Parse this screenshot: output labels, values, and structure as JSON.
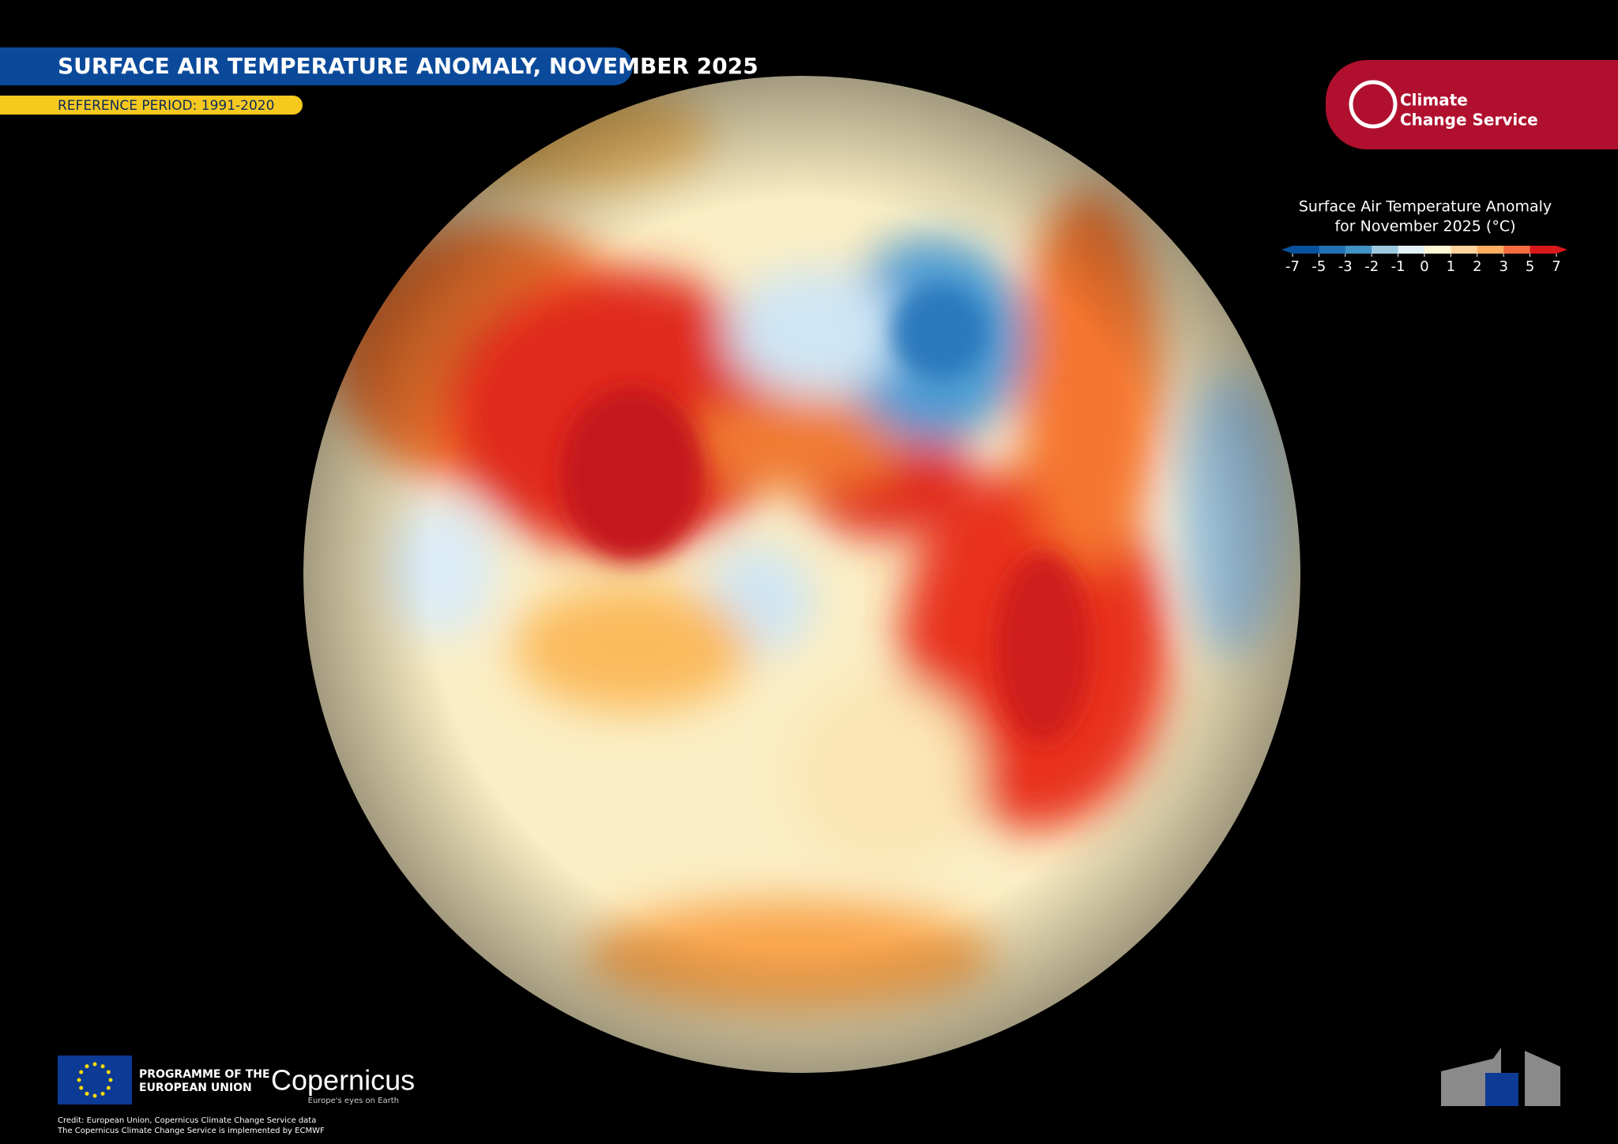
{
  "header": {
    "title": "SURFACE AIR TEMPERATURE ANOMALY, NOVEMBER 2025",
    "reference": "REFERENCE PERIOD: 1991-2020"
  },
  "logo": {
    "line1": "Climate",
    "line2": "Change Service"
  },
  "legend": {
    "title": [
      "Surface Air Temperature Anomaly",
      "for November 2025 (°C)"
    ],
    "ticks": [
      -7,
      -5,
      -3,
      -2,
      -1,
      0,
      1,
      2,
      3,
      5,
      7
    ],
    "colors": [
      "#08519c",
      "#2171b5",
      "#4292c6",
      "#9ecae1",
      "#e3f1fa",
      "#fff6d5",
      "#fdd49e",
      "#fdae61",
      "#f46d43",
      "#d7191c"
    ]
  },
  "footer": {
    "programme": [
      "PROGRAMME OF THE",
      "EUROPEAN UNION"
    ],
    "brand": "Copernicus",
    "tagline": "Europe's eyes on Earth",
    "credits": [
      "Credit: European Union, Copernicus Climate Change Service data",
      "The Copernicus Climate Change Service is implemented by ECMWF"
    ]
  }
}
